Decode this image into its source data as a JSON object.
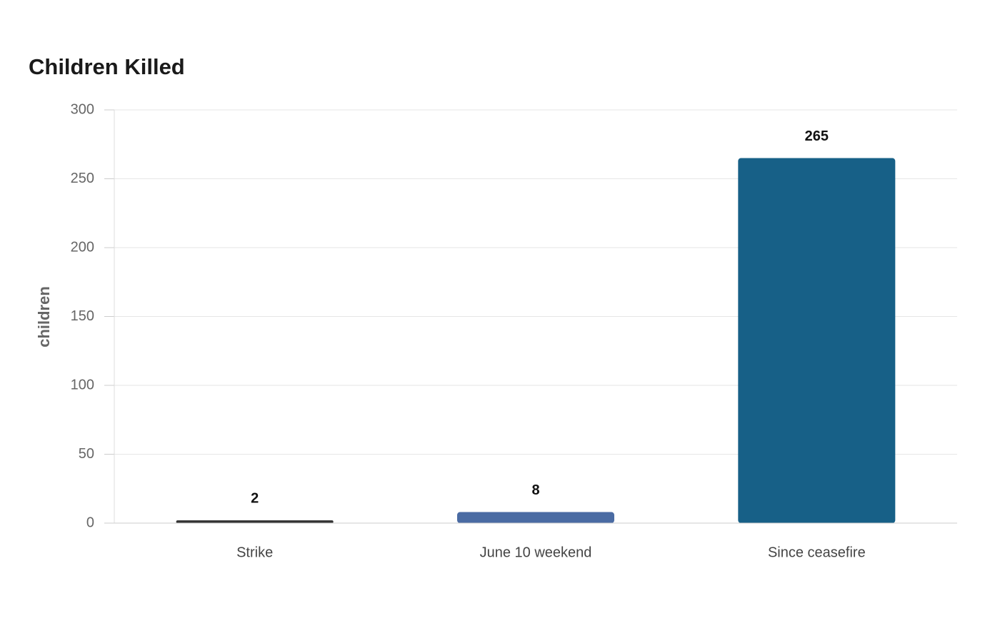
{
  "chart_data": {
    "type": "bar",
    "title": "Children Killed",
    "y_label": "children",
    "categories": [
      "Strike",
      "June 10 weekend",
      "Since ceasefire"
    ],
    "values": [
      2,
      8,
      265
    ],
    "colors": [
      "#333333",
      "#4a6ba3",
      "#176087"
    ],
    "ylim": [
      0,
      300
    ],
    "yticks": [
      0,
      50,
      100,
      150,
      200,
      250,
      300
    ],
    "grid": true
  }
}
